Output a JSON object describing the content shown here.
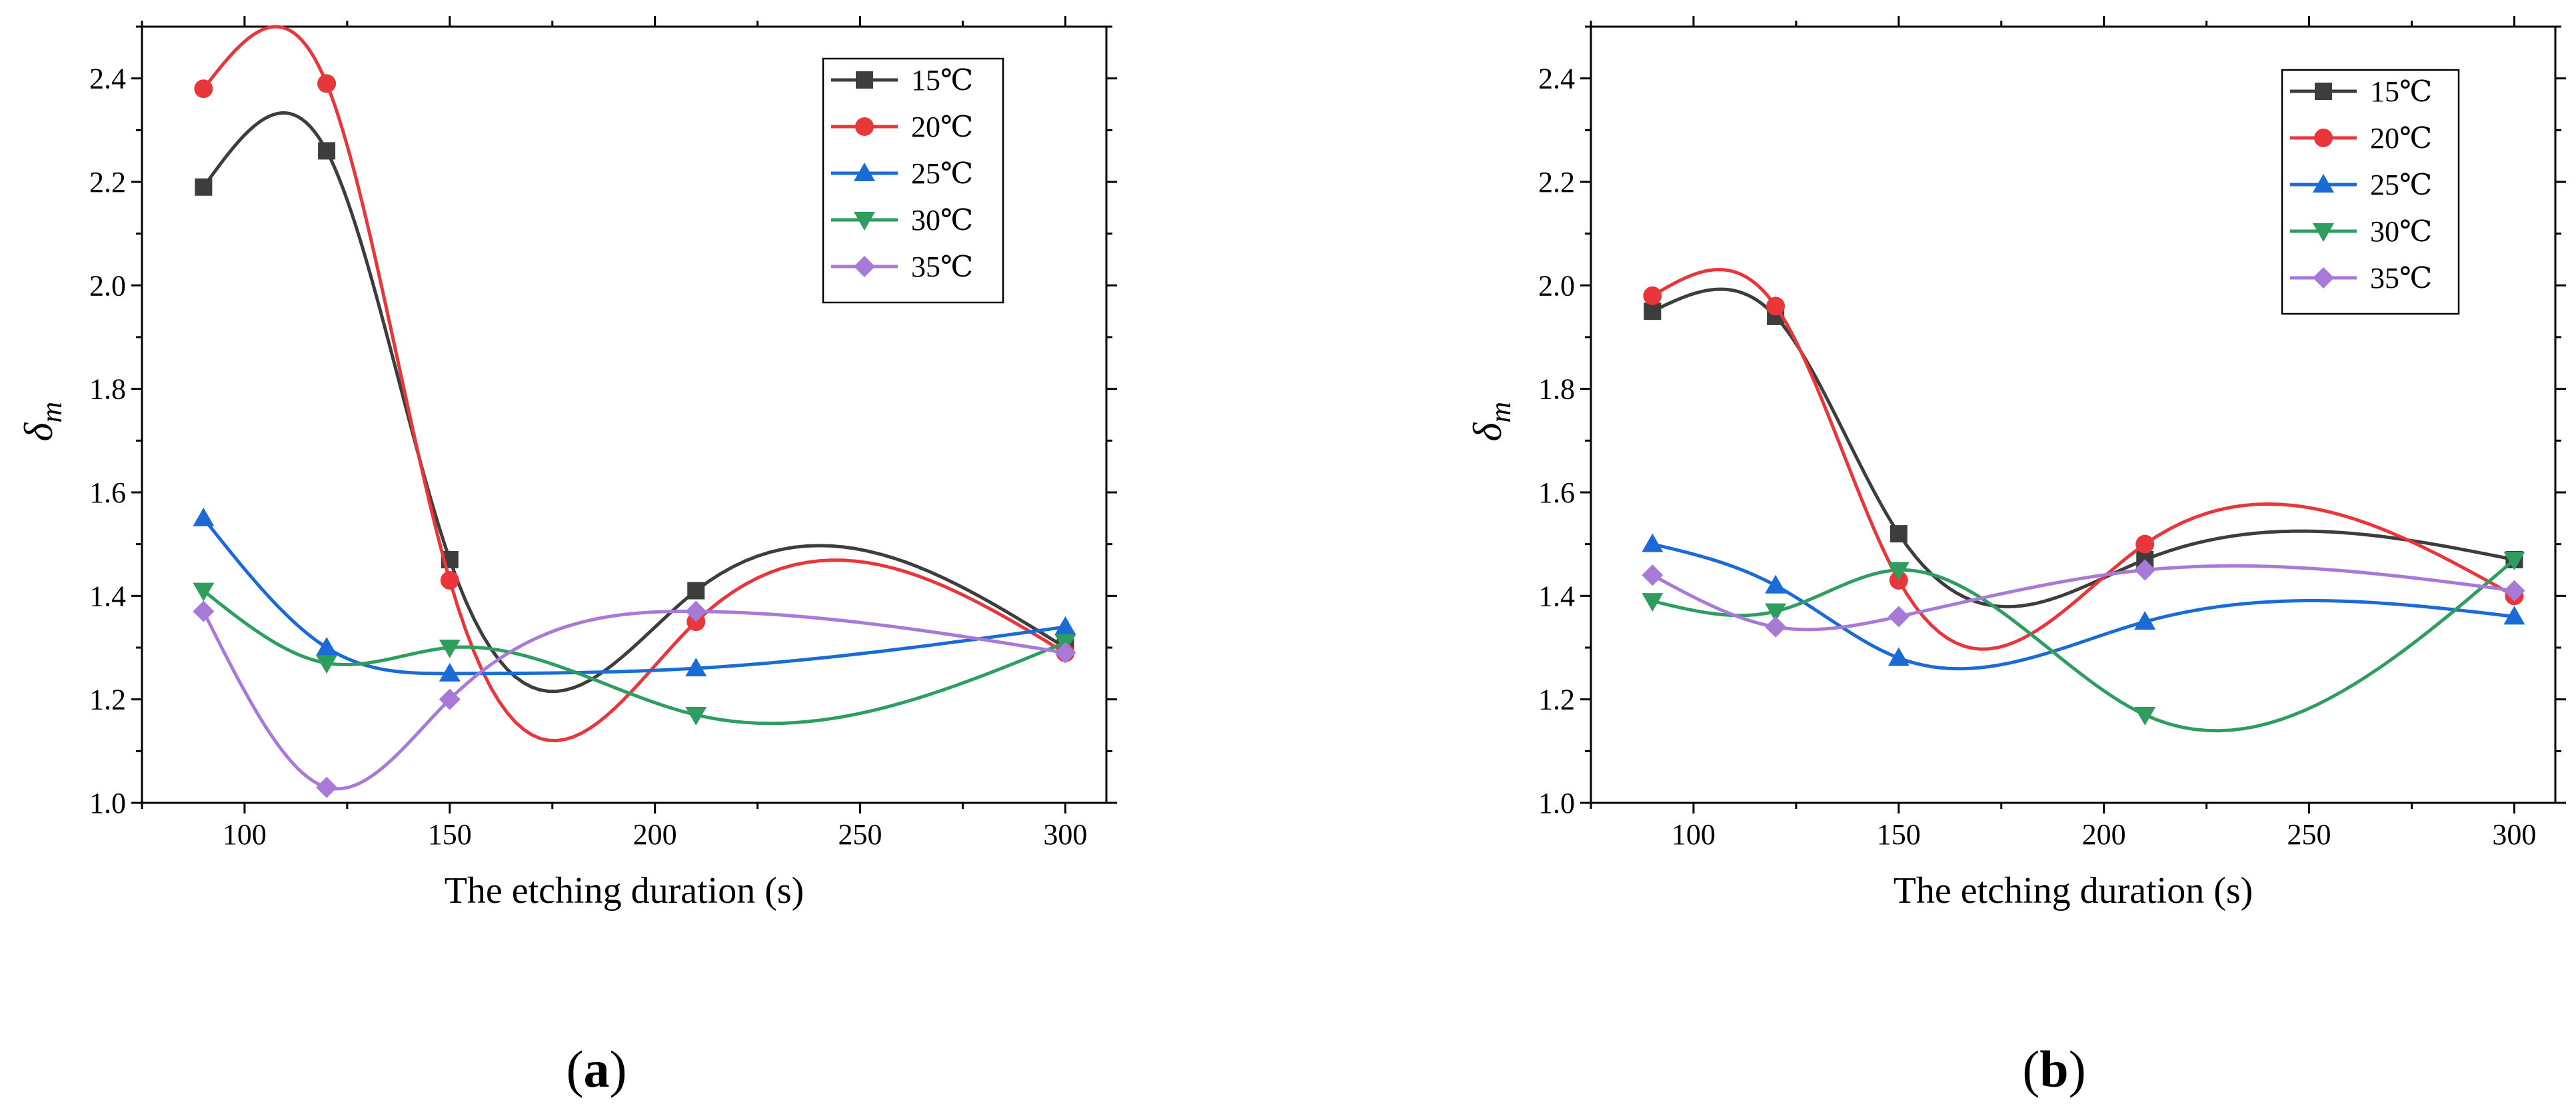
{
  "figures": [
    {
      "caption": "a",
      "chart_data": {
        "type": "line",
        "xlabel": "The etching duration (s)",
        "ylabel": "δ",
        "ylabel_subscript": "m",
        "xlim": [
          75,
          310
        ],
        "ylim": [
          1.0,
          2.5
        ],
        "xticks": [
          "100",
          "150",
          "200",
          "250",
          "300"
        ],
        "yticks": [
          "1.0",
          "1.2",
          "1.4",
          "1.6",
          "1.8",
          "2.0",
          "2.2",
          "2.4"
        ],
        "legend_position": "top-right",
        "x": [
          90,
          120,
          150,
          210,
          300
        ],
        "series": [
          {
            "name": "15℃",
            "color": "#3d3d3d",
            "marker": "square",
            "values": [
              2.19,
              2.26,
              1.47,
              1.41,
              1.3
            ]
          },
          {
            "name": "20℃",
            "color": "#e8363a",
            "marker": "circle",
            "values": [
              2.38,
              2.39,
              1.43,
              1.35,
              1.29
            ]
          },
          {
            "name": "25℃",
            "color": "#1a6bd6",
            "marker": "triangle-up",
            "values": [
              1.55,
              1.3,
              1.25,
              1.26,
              1.34
            ]
          },
          {
            "name": "30℃",
            "color": "#2e9e5e",
            "marker": "triangle-down",
            "values": [
              1.41,
              1.27,
              1.3,
              1.17,
              1.31
            ]
          },
          {
            "name": "35℃",
            "color": "#a87ad8",
            "marker": "diamond",
            "values": [
              1.37,
              1.03,
              1.2,
              1.37,
              1.29
            ]
          }
        ]
      }
    },
    {
      "caption": "b",
      "chart_data": {
        "type": "line",
        "xlabel": "The etching duration (s)",
        "ylabel": "δ",
        "ylabel_subscript": "m",
        "xlim": [
          75,
          310
        ],
        "ylim": [
          1.0,
          2.5
        ],
        "xticks": [
          "100",
          "150",
          "200",
          "250",
          "300"
        ],
        "yticks": [
          "1.0",
          "1.2",
          "1.4",
          "1.6",
          "1.8",
          "2.0",
          "2.2",
          "2.4"
        ],
        "legend_position": "top-right",
        "x": [
          90,
          120,
          150,
          210,
          300
        ],
        "series": [
          {
            "name": "15℃",
            "color": "#3d3d3d",
            "marker": "square",
            "values": [
              1.95,
              1.94,
              1.52,
              1.47,
              1.47
            ]
          },
          {
            "name": "20℃",
            "color": "#e8363a",
            "marker": "circle",
            "values": [
              1.98,
              1.96,
              1.43,
              1.5,
              1.4
            ]
          },
          {
            "name": "25℃",
            "color": "#1a6bd6",
            "marker": "triangle-up",
            "values": [
              1.5,
              1.42,
              1.28,
              1.35,
              1.36
            ]
          },
          {
            "name": "30℃",
            "color": "#2e9e5e",
            "marker": "triangle-down",
            "values": [
              1.39,
              1.37,
              1.45,
              1.17,
              1.47
            ]
          },
          {
            "name": "35℃",
            "color": "#a87ad8",
            "marker": "diamond",
            "values": [
              1.44,
              1.34,
              1.36,
              1.45,
              1.41
            ]
          }
        ]
      }
    }
  ]
}
